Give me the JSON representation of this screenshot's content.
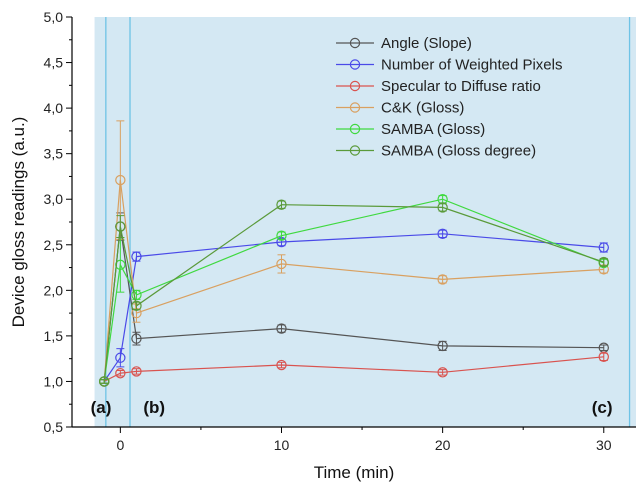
{
  "chart_data": {
    "type": "line",
    "xlabel": "Time (min)",
    "ylabel": "Device gloss readings (a.u.)",
    "xlim": [
      -3,
      32
    ],
    "ylim": [
      0.5,
      5.0
    ],
    "x_ticks": [
      0,
      10,
      20,
      30
    ],
    "y_ticks": [
      0.5,
      1.0,
      1.5,
      2.0,
      2.5,
      3.0,
      3.5,
      4.0,
      4.5,
      5.0
    ],
    "x_tick_labels": [
      "0",
      "10",
      "20",
      "30"
    ],
    "y_tick_labels": [
      "0,5",
      "1,0",
      "1,5",
      "2,0",
      "2,5",
      "3,0",
      "3,5",
      "4,0",
      "4,5",
      "5,0"
    ],
    "legend_position": "top-right",
    "shaded_region": {
      "from": -1.6,
      "to": 32,
      "color": "#d4e8f3"
    },
    "vertical_lines": [
      -0.9,
      0.6,
      31.6
    ],
    "region_labels": [
      {
        "text": "(a)",
        "x": -1.2
      },
      {
        "text": "(b)",
        "x": 2.1
      },
      {
        "text": "(c)",
        "x": 29.9
      }
    ],
    "series": [
      {
        "name": "Angle (Slope)",
        "color": "#555555",
        "x": [
          -1,
          0,
          1,
          10,
          20,
          30
        ],
        "y": [
          1.0,
          2.7,
          1.47,
          1.58,
          1.39,
          1.37
        ],
        "err": [
          0.02,
          0.15,
          0.07,
          0.04,
          0.05,
          0.03
        ]
      },
      {
        "name": "Number of Weighted Pixels",
        "color": "#4a4ae8",
        "x": [
          -1,
          0,
          1,
          10,
          20,
          30
        ],
        "y": [
          1.0,
          1.26,
          2.37,
          2.53,
          2.62,
          2.47
        ],
        "err": [
          0.02,
          0.1,
          0.05,
          0.04,
          0.04,
          0.05
        ]
      },
      {
        "name": "Specular to Diffuse ratio",
        "color": "#d9534f",
        "x": [
          -1,
          0,
          1,
          10,
          20,
          30
        ],
        "y": [
          1.0,
          1.09,
          1.11,
          1.18,
          1.1,
          1.27
        ],
        "err": [
          0.02,
          0.03,
          0.03,
          0.03,
          0.03,
          0.04
        ]
      },
      {
        "name": "C&K (Gloss)",
        "color": "#d9a060",
        "x": [
          -1,
          0,
          1,
          10,
          20,
          30
        ],
        "y": [
          1.0,
          3.21,
          1.75,
          2.29,
          2.12,
          2.23
        ],
        "err": [
          0.02,
          0.65,
          0.1,
          0.1,
          0.04,
          0.04
        ]
      },
      {
        "name": "SAMBA (Gloss)",
        "color": "#3fd93f",
        "x": [
          -1,
          0,
          1,
          10,
          20,
          30
        ],
        "y": [
          1.0,
          2.28,
          1.95,
          2.6,
          3.0,
          2.3
        ],
        "err": [
          0.02,
          0.3,
          0.05,
          0.04,
          0.04,
          0.04
        ]
      },
      {
        "name": "SAMBA (Gloss degree)",
        "color": "#5a9a3a",
        "x": [
          -1,
          0,
          1,
          10,
          20,
          30
        ],
        "y": [
          1.0,
          2.7,
          1.83,
          2.94,
          2.91,
          2.31
        ],
        "err": [
          0.02,
          0.12,
          0.04,
          0.04,
          0.04,
          0.04
        ]
      }
    ]
  }
}
